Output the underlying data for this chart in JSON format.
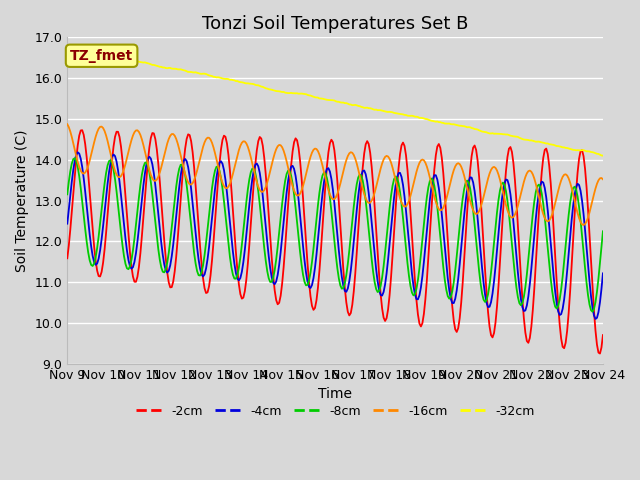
{
  "title": "Tonzi Soil Temperatures Set B",
  "xlabel": "Time",
  "ylabel": "Soil Temperature (C)",
  "ylim": [
    9.0,
    17.0
  ],
  "yticks": [
    9.0,
    10.0,
    11.0,
    12.0,
    13.0,
    14.0,
    15.0,
    16.0,
    17.0
  ],
  "xtick_labels": [
    "Nov 9",
    "Nov 10",
    "Nov 11",
    "Nov 12",
    "Nov 13",
    "Nov 14",
    "Nov 15",
    "Nov 16",
    "Nov 17",
    "Nov 18",
    "Nov 19",
    "Nov 20",
    "Nov 21",
    "Nov 22",
    "Nov 23",
    "Nov 24"
  ],
  "annotation_text": "TZ_fmet",
  "annotation_color": "#8B0000",
  "annotation_bg": "#FFFF99",
  "annotation_border": "#999900",
  "line_colors": {
    "-2cm": "#FF0000",
    "-4cm": "#0000DD",
    "-8cm": "#00CC00",
    "-16cm": "#FF8800",
    "-32cm": "#FFFF00"
  },
  "legend_labels": [
    "-2cm",
    "-4cm",
    "-8cm",
    "-16cm",
    "-32cm"
  ],
  "background_color": "#D8D8D8",
  "plot_bg_color": "#D8D8D8",
  "grid_color": "#FFFFFF",
  "title_fontsize": 13,
  "label_fontsize": 10,
  "tick_fontsize": 9
}
